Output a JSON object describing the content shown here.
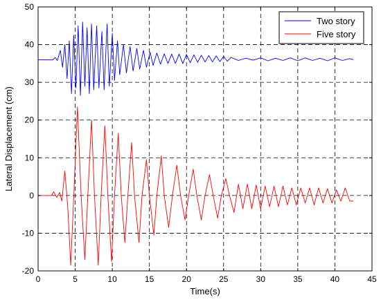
{
  "chart_data": {
    "type": "line",
    "title": "",
    "xlabel": "Time(s)",
    "ylabel": "Lateral Displacement (cm)",
    "xlim": [
      0,
      45
    ],
    "ylim": [
      -20,
      50
    ],
    "xticks": [
      0,
      5,
      10,
      15,
      20,
      25,
      30,
      35,
      40,
      45
    ],
    "yticks": [
      -20,
      -10,
      0,
      10,
      20,
      30,
      40,
      50
    ],
    "grid": "dashed",
    "legend_position": "top-right",
    "series": [
      {
        "name": "Two story",
        "color": "#0000ff",
        "points": [
          [
            0,
            36
          ],
          [
            2.0,
            36
          ],
          [
            2.3,
            36.6
          ],
          [
            2.6,
            35.8
          ],
          [
            3.0,
            38.5
          ],
          [
            3.3,
            34.0
          ],
          [
            3.6,
            40.0
          ],
          [
            3.9,
            31.0
          ],
          [
            4.2,
            41.0
          ],
          [
            4.5,
            27.0
          ],
          [
            4.8,
            42.5
          ],
          [
            5.1,
            28.5
          ],
          [
            5.4,
            45.0
          ],
          [
            5.7,
            26.5
          ],
          [
            6.0,
            46.0
          ],
          [
            6.3,
            29.0
          ],
          [
            6.6,
            44.5
          ],
          [
            6.9,
            27.0
          ],
          [
            7.2,
            45.5
          ],
          [
            7.5,
            28.0
          ],
          [
            7.9,
            45.0
          ],
          [
            8.2,
            28.5
          ],
          [
            8.6,
            43.5
          ],
          [
            8.9,
            28.0
          ],
          [
            9.3,
            45.5
          ],
          [
            9.6,
            29.0
          ],
          [
            10.0,
            43.0
          ],
          [
            10.3,
            30.5
          ],
          [
            10.7,
            41.0
          ],
          [
            11.0,
            32.0
          ],
          [
            11.5,
            40.0
          ],
          [
            11.9,
            32.5
          ],
          [
            12.4,
            39.5
          ],
          [
            12.8,
            33.0
          ],
          [
            13.3,
            39.0
          ],
          [
            13.7,
            33.5
          ],
          [
            14.2,
            38.5
          ],
          [
            14.6,
            34.0
          ],
          [
            15.1,
            38.0
          ],
          [
            15.5,
            34.5
          ],
          [
            16.0,
            37.8
          ],
          [
            16.5,
            34.8
          ],
          [
            17.0,
            37.6
          ],
          [
            17.5,
            35.0
          ],
          [
            18.0,
            37.5
          ],
          [
            18.5,
            35.0
          ],
          [
            19.0,
            37.5
          ],
          [
            19.5,
            35.0
          ],
          [
            20.0,
            37.4
          ],
          [
            20.5,
            35.2
          ],
          [
            21.0,
            37.3
          ],
          [
            21.5,
            35.3
          ],
          [
            22.0,
            37.2
          ],
          [
            22.5,
            35.4
          ],
          [
            23.0,
            37.1
          ],
          [
            23.5,
            35.4
          ],
          [
            24.0,
            37.0
          ],
          [
            24.5,
            35.5
          ],
          [
            25.0,
            36.9
          ],
          [
            25.5,
            35.6
          ],
          [
            26.0,
            36.6
          ],
          [
            27.0,
            35.8
          ],
          [
            28.0,
            36.4
          ],
          [
            29.0,
            35.9
          ],
          [
            30.0,
            36.5
          ],
          [
            31.0,
            35.7
          ],
          [
            32.0,
            36.4
          ],
          [
            33.0,
            35.8
          ],
          [
            34.0,
            36.5
          ],
          [
            35.0,
            35.7
          ],
          [
            36.0,
            36.5
          ],
          [
            37.0,
            35.8
          ],
          [
            38.0,
            36.4
          ],
          [
            39.0,
            35.7
          ],
          [
            40.0,
            36.5
          ],
          [
            41.0,
            35.8
          ],
          [
            42.0,
            36.3
          ],
          [
            42.5,
            36.0
          ]
        ]
      },
      {
        "name": "Five story",
        "color": "#ff0000",
        "points": [
          [
            0,
            0
          ],
          [
            1.8,
            0
          ],
          [
            2.1,
            1.0
          ],
          [
            2.5,
            -0.5
          ],
          [
            2.9,
            0.8
          ],
          [
            3.2,
            -1.5
          ],
          [
            3.6,
            6.5
          ],
          [
            4.0,
            -3.0
          ],
          [
            4.4,
            -18.5
          ],
          [
            4.9,
            4.0
          ],
          [
            5.3,
            23.5
          ],
          [
            5.8,
            0.0
          ],
          [
            6.3,
            -17.0
          ],
          [
            6.7,
            0.0
          ],
          [
            7.2,
            20.0
          ],
          [
            7.6,
            0.0
          ],
          [
            8.1,
            -18.5
          ],
          [
            8.5,
            0.0
          ],
          [
            9.0,
            18.5
          ],
          [
            9.4,
            0.0
          ],
          [
            9.9,
            -17.5
          ],
          [
            10.3,
            0.0
          ],
          [
            10.8,
            16.5
          ],
          [
            11.2,
            0.0
          ],
          [
            11.7,
            -12.5
          ],
          [
            12.1,
            0.0
          ],
          [
            12.6,
            14.0
          ],
          [
            13.0,
            0.0
          ],
          [
            13.6,
            -12.5
          ],
          [
            14.0,
            0.0
          ],
          [
            14.6,
            9.5
          ],
          [
            15.0,
            0.0
          ],
          [
            15.6,
            -10.5
          ],
          [
            16.0,
            0.0
          ],
          [
            16.6,
            10.5
          ],
          [
            17.0,
            0.0
          ],
          [
            17.6,
            -8.5
          ],
          [
            18.1,
            0.0
          ],
          [
            18.7,
            8.0
          ],
          [
            19.2,
            0.0
          ],
          [
            19.8,
            -6.5
          ],
          [
            20.3,
            0.0
          ],
          [
            20.9,
            7.0
          ],
          [
            21.4,
            0.0
          ],
          [
            22.0,
            -6.5
          ],
          [
            22.5,
            0.0
          ],
          [
            23.1,
            5.5
          ],
          [
            23.6,
            0.0
          ],
          [
            24.2,
            -6.0
          ],
          [
            24.7,
            0.0
          ],
          [
            25.3,
            4.5
          ],
          [
            25.8,
            0.0
          ],
          [
            26.4,
            -4.5
          ],
          [
            27.0,
            3.0
          ],
          [
            27.6,
            -3.5
          ],
          [
            28.2,
            3.0
          ],
          [
            28.8,
            -3.5
          ],
          [
            29.4,
            2.8
          ],
          [
            30.0,
            -3.5
          ],
          [
            30.6,
            2.5
          ],
          [
            31.2,
            -3.0
          ],
          [
            31.8,
            2.5
          ],
          [
            32.4,
            -3.0
          ],
          [
            33.0,
            2.5
          ],
          [
            33.6,
            -2.5
          ],
          [
            34.2,
            2.0
          ],
          [
            34.8,
            -2.5
          ],
          [
            35.4,
            2.0
          ],
          [
            36.0,
            -2.0
          ],
          [
            36.6,
            2.0
          ],
          [
            37.2,
            -2.5
          ],
          [
            37.8,
            2.0
          ],
          [
            38.4,
            -2.0
          ],
          [
            39.0,
            1.8
          ],
          [
            39.6,
            -2.0
          ],
          [
            40.2,
            1.5
          ],
          [
            40.8,
            -1.5
          ],
          [
            41.4,
            2.0
          ],
          [
            42.0,
            -1.5
          ],
          [
            42.5,
            -1.5
          ]
        ]
      }
    ]
  }
}
